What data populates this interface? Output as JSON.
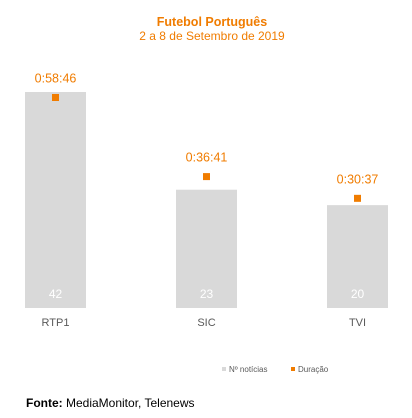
{
  "chart_data": {
    "type": "bar",
    "title": "Futebol Português",
    "subtitle": "2 a 8 de Setembro de 2019",
    "categories": [
      "RTP1",
      "SIC",
      "TVI"
    ],
    "series": [
      {
        "name": "Nº notícias",
        "type": "bar",
        "values": [
          42,
          23,
          20
        ],
        "color": "#d9d9d9"
      },
      {
        "name": "Duração",
        "type": "marker",
        "values": [
          "0:58:46",
          "0:36:41",
          "0:30:37"
        ],
        "seconds": [
          3526,
          2201,
          1837
        ],
        "color": "#f07c00"
      }
    ],
    "legend_position": "bottom-right",
    "grid": false
  },
  "source": {
    "label": "Fonte:",
    "text": " MediaMonitor, Telenews"
  },
  "colors": {
    "accent": "#f07c00",
    "bar": "#d9d9d9",
    "bar_label": "#ffffff",
    "axis_text": "#595959"
  }
}
